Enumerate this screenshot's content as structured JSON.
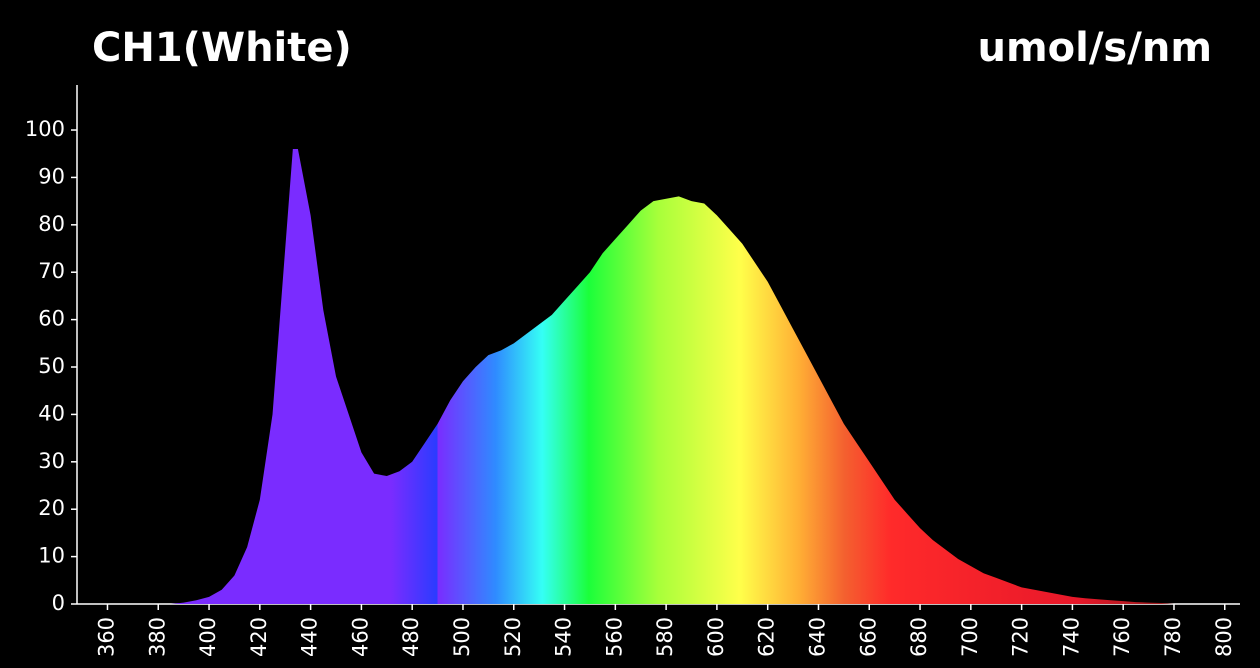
{
  "chart_data": {
    "type": "area",
    "title": "CH1(White)",
    "unit": "umol/s/nm",
    "x": [
      380,
      385,
      390,
      395,
      400,
      405,
      410,
      415,
      420,
      425,
      430,
      433,
      435,
      440,
      445,
      450,
      455,
      460,
      465,
      470,
      475,
      480,
      485,
      490,
      495,
      500,
      505,
      510,
      515,
      520,
      525,
      530,
      535,
      540,
      545,
      550,
      555,
      560,
      565,
      570,
      575,
      580,
      585,
      590,
      595,
      600,
      605,
      610,
      615,
      620,
      625,
      630,
      635,
      640,
      645,
      650,
      655,
      660,
      665,
      670,
      675,
      680,
      685,
      690,
      695,
      700,
      705,
      710,
      715,
      720,
      725,
      730,
      735,
      740,
      745,
      750,
      755,
      760,
      765,
      770,
      775,
      780
    ],
    "values": [
      0,
      0,
      0.3,
      0.8,
      1.5,
      3,
      6,
      12,
      22,
      40,
      75,
      96,
      96,
      82,
      62,
      48,
      40,
      32,
      27.5,
      27,
      28,
      30,
      34,
      38,
      43,
      47,
      50,
      52.5,
      53.5,
      55,
      57,
      59,
      61,
      64,
      67,
      70,
      74,
      77,
      80,
      83,
      85,
      85.5,
      86,
      85,
      84.5,
      82,
      79,
      76,
      72,
      68,
      63,
      58,
      53,
      48,
      43,
      38,
      34,
      30,
      26,
      22,
      19,
      16,
      13.5,
      11.5,
      9.5,
      8,
      6.5,
      5.5,
      4.5,
      3.5,
      3,
      2.5,
      2,
      1.5,
      1.2,
      1,
      0.8,
      0.6,
      0.4,
      0.3,
      0.2,
      0
    ],
    "xlim": [
      348,
      806
    ],
    "ylim": [
      0,
      109.5
    ],
    "xticks": [
      360,
      380,
      400,
      420,
      440,
      460,
      480,
      500,
      520,
      540,
      560,
      580,
      600,
      620,
      640,
      660,
      680,
      700,
      720,
      740,
      760,
      780,
      800
    ],
    "yticks": [
      0,
      10,
      20,
      30,
      40,
      50,
      60,
      70,
      80,
      90,
      100
    ]
  }
}
